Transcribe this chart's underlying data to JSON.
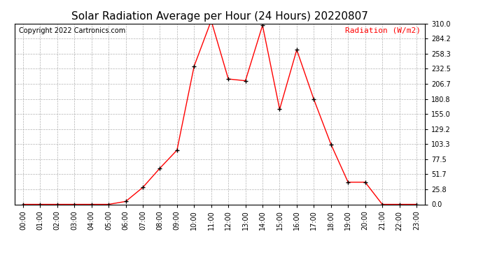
{
  "title": "Solar Radiation Average per Hour (24 Hours) 20220807",
  "ylabel": "Radiation (W/m2)",
  "copyright": "Copyright 2022 Cartronics.com",
  "line_color": "red",
  "marker_color": "black",
  "background_color": "#ffffff",
  "grid_color": "#aaaaaa",
  "ylabel_color": "red",
  "title_color": "black",
  "hours": [
    0,
    1,
    2,
    3,
    4,
    5,
    6,
    7,
    8,
    9,
    10,
    11,
    12,
    13,
    14,
    15,
    16,
    17,
    18,
    19,
    20,
    21,
    22,
    23
  ],
  "values": [
    0.0,
    0.0,
    0.0,
    0.0,
    0.0,
    0.0,
    5.0,
    29.0,
    62.0,
    93.0,
    237.0,
    315.0,
    215.0,
    212.0,
    307.0,
    163.0,
    265.0,
    180.0,
    103.0,
    38.0,
    38.0,
    0.0,
    0.0,
    0.0
  ],
  "ylim": [
    0.0,
    310.0
  ],
  "yticks": [
    0.0,
    25.8,
    51.7,
    77.5,
    103.3,
    129.2,
    155.0,
    180.8,
    206.7,
    232.5,
    258.3,
    284.2,
    310.0
  ],
  "ytick_labels": [
    "0.0",
    "25.8",
    "51.7",
    "77.5",
    "103.3",
    "129.2",
    "155.0",
    "180.8",
    "206.7",
    "232.5",
    "258.3",
    "284.2",
    "310.0"
  ],
  "title_fontsize": 11,
  "tick_fontsize": 7,
  "copyright_fontsize": 7,
  "ylabel_fontsize": 8
}
